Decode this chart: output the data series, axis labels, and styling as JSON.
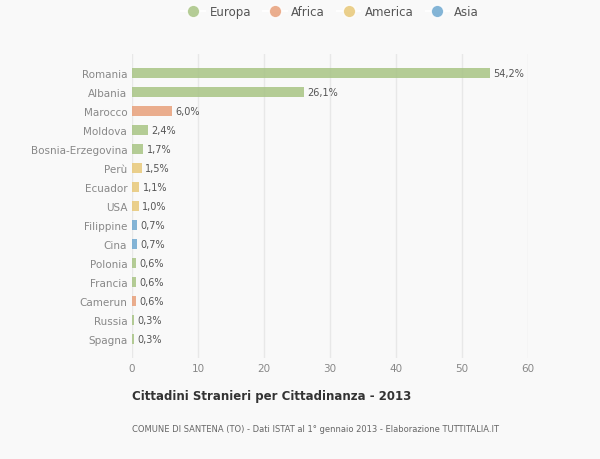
{
  "countries": [
    "Romania",
    "Albania",
    "Marocco",
    "Moldova",
    "Bosnia-Erzegovina",
    "Perù",
    "Ecuador",
    "USA",
    "Filippine",
    "Cina",
    "Polonia",
    "Francia",
    "Camerun",
    "Russia",
    "Spagna"
  ],
  "values": [
    54.2,
    26.1,
    6.0,
    2.4,
    1.7,
    1.5,
    1.1,
    1.0,
    0.7,
    0.7,
    0.6,
    0.6,
    0.6,
    0.3,
    0.3
  ],
  "labels": [
    "54,2%",
    "26,1%",
    "6,0%",
    "2,4%",
    "1,7%",
    "1,5%",
    "1,1%",
    "1,0%",
    "0,7%",
    "0,7%",
    "0,6%",
    "0,6%",
    "0,6%",
    "0,3%",
    "0,3%"
  ],
  "continents": [
    "Europa",
    "Europa",
    "Africa",
    "Europa",
    "Europa",
    "America",
    "America",
    "America",
    "Asia",
    "Asia",
    "Europa",
    "Europa",
    "Africa",
    "Europa",
    "Europa"
  ],
  "continent_colors": {
    "Europa": "#a8c484",
    "Africa": "#e8a07a",
    "America": "#e8c878",
    "Asia": "#6fa8d0"
  },
  "legend_items": [
    "Europa",
    "Africa",
    "America",
    "Asia"
  ],
  "xlim": [
    0,
    60
  ],
  "xticks": [
    0,
    10,
    20,
    30,
    40,
    50,
    60
  ],
  "title": "Cittadini Stranieri per Cittadinanza - 2013",
  "subtitle": "COMUNE DI SANTENA (TO) - Dati ISTAT al 1° gennaio 2013 - Elaborazione TUTTITALIA.IT",
  "bg_color": "#f9f9f9",
  "grid_color": "#e8e8e8",
  "bar_height": 0.55
}
